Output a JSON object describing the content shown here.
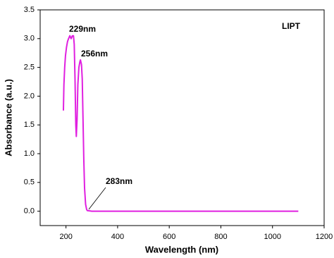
{
  "chart_data": {
    "type": "line",
    "x_label": "Wavelength (nm)",
    "y_label": "Absorbance (a.u.)",
    "annotations": [
      "229nm",
      "256nm",
      "283nm"
    ],
    "x": [
      190,
      192,
      195,
      198,
      202,
      206,
      210,
      215,
      220,
      225,
      229,
      232,
      235,
      238,
      240,
      243,
      246,
      250,
      254,
      256,
      260,
      263,
      266,
      269,
      272,
      276,
      280,
      283,
      300,
      400,
      600,
      800,
      1000,
      1100
    ],
    "series": [
      {
        "name": "LIPT",
        "color": "#e020e0",
        "values": [
          1.75,
          2.2,
          2.5,
          2.7,
          2.85,
          2.95,
          3.0,
          3.05,
          3.0,
          3.05,
          3.05,
          2.9,
          2.3,
          1.5,
          1.3,
          1.6,
          2.2,
          2.5,
          2.6,
          2.63,
          2.55,
          2.3,
          1.6,
          0.9,
          0.4,
          0.12,
          0.03,
          0.01,
          0.0,
          0.0,
          0.0,
          0.0,
          0.0,
          0.0
        ]
      }
    ],
    "xlim": [
      100,
      1200
    ],
    "xticks": [
      200,
      400,
      600,
      800,
      1000,
      1200
    ],
    "ylim": [
      -0.25,
      3.5
    ],
    "yticks": [
      {
        "value": 0,
        "label": "0.0"
      },
      {
        "value": 0.5,
        "label": "0.5"
      },
      {
        "value": 1,
        "label": "1.0"
      },
      {
        "value": 1.5,
        "label": "1.5"
      },
      {
        "value": 2,
        "label": "2.0"
      },
      {
        "value": 2.5,
        "label": "2.5"
      },
      {
        "value": 3,
        "label": "3.0"
      },
      {
        "value": 3.5,
        "label": "3.5"
      }
    ],
    "grid": false
  }
}
